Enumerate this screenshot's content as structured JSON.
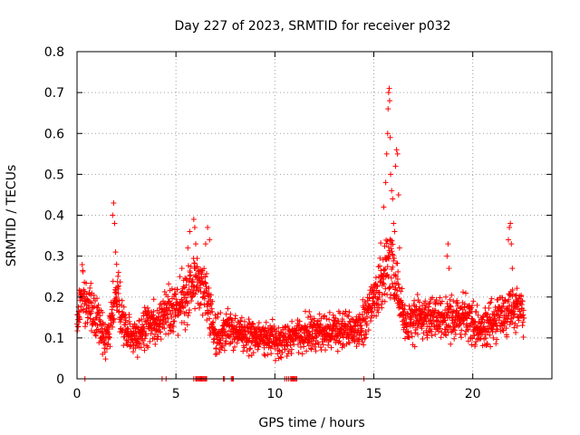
{
  "chart_data": {
    "type": "scatter",
    "title": "Day 227 of 2023, SRMTID for receiver p032",
    "xlabel": "GPS time / hours",
    "ylabel": "SRMTID / TECUs",
    "xlim": [
      0,
      24
    ],
    "ylim": [
      0,
      0.8
    ],
    "grid": true,
    "marker": "+",
    "colors": {
      "series": "#ff0000",
      "grid": "#a0a0a0",
      "axis": "#000000"
    },
    "x_ticks": [
      {
        "value": 0,
        "label": "0"
      },
      {
        "value": 5,
        "label": "5"
      },
      {
        "value": 10,
        "label": "10"
      },
      {
        "value": 15,
        "label": "15"
      },
      {
        "value": 20,
        "label": "20"
      }
    ],
    "y_ticks": [
      {
        "value": 0,
        "label": "0"
      },
      {
        "value": 0.1,
        "label": "0.1"
      },
      {
        "value": 0.2,
        "label": "0.2"
      },
      {
        "value": 0.3,
        "label": "0.3"
      },
      {
        "value": 0.4,
        "label": "0.4"
      },
      {
        "value": 0.5,
        "label": "0.5"
      },
      {
        "value": 0.6,
        "label": "0.6"
      },
      {
        "value": 0.7,
        "label": "0.7"
      },
      {
        "value": 0.8,
        "label": "0.8"
      }
    ],
    "series": [
      {
        "name": "SRMTID",
        "profile": [
          {
            "x": 0.0,
            "y": 0.14,
            "spread": 0.05
          },
          {
            "x": 0.3,
            "y": 0.22,
            "spread": 0.06
          },
          {
            "x": 0.6,
            "y": 0.17,
            "spread": 0.05
          },
          {
            "x": 1.0,
            "y": 0.15,
            "spread": 0.05
          },
          {
            "x": 1.5,
            "y": 0.1,
            "spread": 0.04
          },
          {
            "x": 2.0,
            "y": 0.2,
            "spread": 0.06
          },
          {
            "x": 2.5,
            "y": 0.11,
            "spread": 0.05
          },
          {
            "x": 3.0,
            "y": 0.1,
            "spread": 0.04
          },
          {
            "x": 3.5,
            "y": 0.13,
            "spread": 0.05
          },
          {
            "x": 4.0,
            "y": 0.13,
            "spread": 0.05
          },
          {
            "x": 4.5,
            "y": 0.16,
            "spread": 0.05
          },
          {
            "x": 5.0,
            "y": 0.18,
            "spread": 0.06
          },
          {
            "x": 5.5,
            "y": 0.19,
            "spread": 0.06
          },
          {
            "x": 6.0,
            "y": 0.25,
            "spread": 0.06
          },
          {
            "x": 6.5,
            "y": 0.2,
            "spread": 0.06
          },
          {
            "x": 7.0,
            "y": 0.1,
            "spread": 0.04
          },
          {
            "x": 7.5,
            "y": 0.12,
            "spread": 0.04
          },
          {
            "x": 8.0,
            "y": 0.12,
            "spread": 0.04
          },
          {
            "x": 9.0,
            "y": 0.1,
            "spread": 0.04
          },
          {
            "x": 10.0,
            "y": 0.09,
            "spread": 0.04
          },
          {
            "x": 11.0,
            "y": 0.11,
            "spread": 0.04
          },
          {
            "x": 12.0,
            "y": 0.11,
            "spread": 0.04
          },
          {
            "x": 13.0,
            "y": 0.12,
            "spread": 0.04
          },
          {
            "x": 14.0,
            "y": 0.12,
            "spread": 0.04
          },
          {
            "x": 14.6,
            "y": 0.14,
            "spread": 0.05
          },
          {
            "x": 15.2,
            "y": 0.22,
            "spread": 0.06
          },
          {
            "x": 15.8,
            "y": 0.3,
            "spread": 0.08
          },
          {
            "x": 16.2,
            "y": 0.22,
            "spread": 0.06
          },
          {
            "x": 16.6,
            "y": 0.13,
            "spread": 0.05
          },
          {
            "x": 17.5,
            "y": 0.15,
            "spread": 0.04
          },
          {
            "x": 18.5,
            "y": 0.15,
            "spread": 0.05
          },
          {
            "x": 19.5,
            "y": 0.15,
            "spread": 0.05
          },
          {
            "x": 20.5,
            "y": 0.12,
            "spread": 0.04
          },
          {
            "x": 21.5,
            "y": 0.15,
            "spread": 0.05
          },
          {
            "x": 22.0,
            "y": 0.18,
            "spread": 0.05
          },
          {
            "x": 22.6,
            "y": 0.16,
            "spread": 0.05
          }
        ],
        "points": [
          [
            1.8,
            0.4
          ],
          [
            1.85,
            0.43
          ],
          [
            1.9,
            0.38
          ],
          [
            1.95,
            0.31
          ],
          [
            2.0,
            0.28
          ],
          [
            2.1,
            0.26
          ],
          [
            5.2,
            0.25
          ],
          [
            5.3,
            0.27
          ],
          [
            5.6,
            0.32
          ],
          [
            5.7,
            0.36
          ],
          [
            5.9,
            0.39
          ],
          [
            5.95,
            0.37
          ],
          [
            6.0,
            0.33
          ],
          [
            6.6,
            0.37
          ],
          [
            6.7,
            0.34
          ],
          [
            6.5,
            0.33
          ],
          [
            15.5,
            0.42
          ],
          [
            15.6,
            0.48
          ],
          [
            15.65,
            0.55
          ],
          [
            15.7,
            0.6
          ],
          [
            15.72,
            0.66
          ],
          [
            15.75,
            0.7
          ],
          [
            15.78,
            0.71
          ],
          [
            15.8,
            0.68
          ],
          [
            15.83,
            0.59
          ],
          [
            15.85,
            0.5
          ],
          [
            15.9,
            0.46
          ],
          [
            15.95,
            0.44
          ],
          [
            16.0,
            0.38
          ],
          [
            16.05,
            0.36
          ],
          [
            16.1,
            0.52
          ],
          [
            16.15,
            0.56
          ],
          [
            16.2,
            0.55
          ],
          [
            16.25,
            0.45
          ],
          [
            16.3,
            0.32
          ],
          [
            18.7,
            0.3
          ],
          [
            18.75,
            0.33
          ],
          [
            18.8,
            0.27
          ],
          [
            21.8,
            0.34
          ],
          [
            21.85,
            0.37
          ],
          [
            21.9,
            0.38
          ],
          [
            21.95,
            0.33
          ],
          [
            22.0,
            0.27
          ]
        ],
        "zero_values_at_hours": [
          0.4,
          4.3,
          4.5,
          5.9,
          6.0,
          6.05,
          6.1,
          6.15,
          6.2,
          6.25,
          6.3,
          6.35,
          6.4,
          6.45,
          6.5,
          6.55,
          7.4,
          7.45,
          7.8,
          7.85,
          7.9,
          10.5,
          10.6,
          10.7,
          10.8,
          10.85,
          10.9,
          10.95,
          11.0,
          11.05,
          11.1,
          14.5
        ]
      }
    ]
  }
}
